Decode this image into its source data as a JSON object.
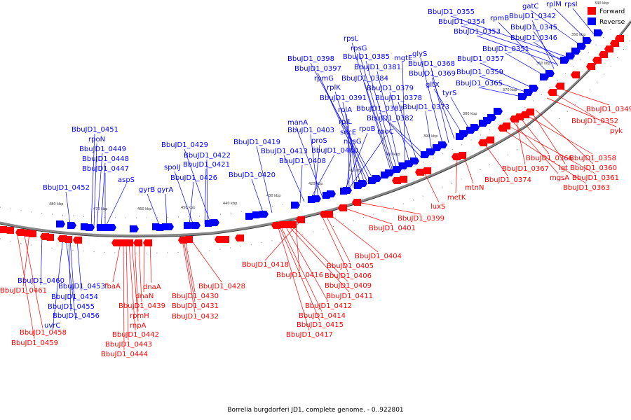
{
  "caption": "Borrelia burgdorferi JD1, complete genome. - 0..922801",
  "legend": {
    "items": [
      {
        "label": "Forward",
        "color": "#ff0000"
      },
      {
        "label": "Reverse",
        "color": "#0000ff"
      }
    ]
  },
  "colors": {
    "forward": "#ff0000",
    "reverse": "#0000ff",
    "backbone": "#888888"
  },
  "ticks": [
    "340 kbp",
    "350 kbp",
    "360 kbp",
    "370 kbp",
    "380 kbp",
    "390 kbp",
    "400 kbp",
    "410 kbp",
    "420 kbp",
    "430 kbp",
    "440 kbp",
    "450 kbp",
    "460 kbp",
    "470 kbp",
    "480 kbp"
  ],
  "reverse_labels": [
    "BbuJD1_0355",
    "BbuJD1_0354",
    "BbuJD1_0353",
    "rpmB",
    "BbuJD1_0342",
    "BbuJD1_0345",
    "BbuJD1_0346",
    "BbuJD1_0351",
    "BbuJD1_0357",
    "BbuJD1_0359",
    "BbuJD1_0365",
    "gatC",
    "rplM",
    "rpsI",
    "rpsL",
    "rpsG",
    "BbuJD1_0385",
    "BbuJD1_0381",
    "BbuJD1_0384",
    "mgtE",
    "BbuJD1_0379",
    "BbuJD1_0378",
    "BbuJD1_0383",
    "BbuJD1_0382",
    "BbuJD1_0373",
    "glyS",
    "BbuJD1_0368",
    "BbuJD1_0369",
    "gltX",
    "tyrS",
    "BbuJD1_0398",
    "BbuJD1_0397",
    "rpmG",
    "rplK",
    "BbuJD1_0391",
    "rplA",
    "rplL",
    "secE",
    "nusG",
    "rpoB",
    "rpoC",
    "manA",
    "BbuJD1_0403",
    "proS",
    "BbuJD1_0400",
    "BbuJD1_0413",
    "BbuJD1_0408",
    "BbuJD1_0419",
    "BbuJD1_0420",
    "BbuJD1_0429",
    "BbuJD1_0422",
    "BbuJD1_0421",
    "spoIJ",
    "BbuJD1_0426",
    "gyrB",
    "gyrA",
    "aspS",
    "BbuJD1_0451",
    "rpoN",
    "BbuJD1_0449",
    "BbuJD1_0448",
    "BbuJD1_0447",
    "BbuJD1_0452",
    "BbuJD1_0460",
    "BbuJD1_0453",
    "BbuJD1_0454",
    "BbuJD1_0455",
    "BbuJD1_0456",
    "uvrC"
  ],
  "forward_labels": [
    "BbuJD1_0349",
    "BbuJD1_0352",
    "pyk",
    "BbuJD1_0358",
    "BbuJD1_0366",
    "lgt",
    "BbuJD1_0360",
    "BbuJD1_0367",
    "mgsA",
    "BbuJD1_0361",
    "BbuJD1_0374",
    "BbuJD1_0363",
    "mtnN",
    "metK",
    "luxS",
    "BbuJD1_0399",
    "BbuJD1_0401",
    "BbuJD1_0404",
    "BbuJD1_0405",
    "BbuJD1_0406",
    "BbuJD1_0418",
    "BbuJD1_0416",
    "BbuJD1_0409",
    "BbuJD1_0411",
    "BbuJD1_0412",
    "BbuJD1_0414",
    "BbuJD1_0415",
    "BbuJD1_0417",
    "BbuJD1_0428",
    "BbuJD1_0430",
    "BbuJD1_0431",
    "BbuJD1_0432",
    "fbaA",
    "dnaA",
    "dnaN",
    "BbuJD1_0439",
    "rpmH",
    "rnpA",
    "BbuJD1_0442",
    "BbuJD1_0443",
    "BbuJD1_0444",
    "BbuJD1_0461",
    "BbuJD1_0458",
    "BbuJD1_0459"
  ]
}
